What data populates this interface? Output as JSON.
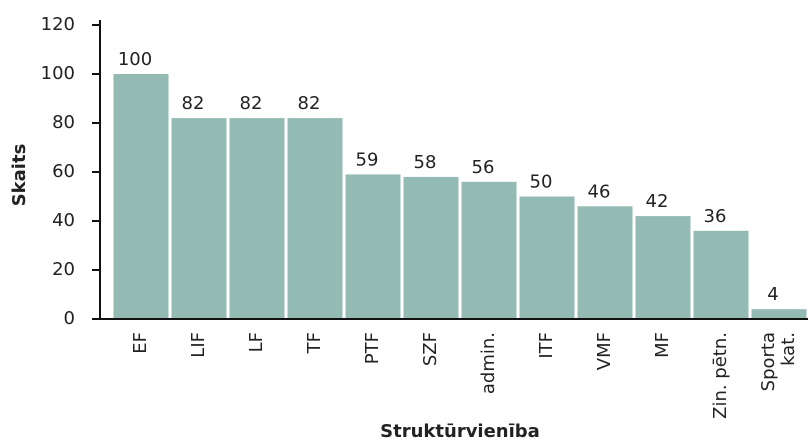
{
  "chart_data": {
    "type": "bar",
    "x_label": "Struktūrvienība",
    "y_label": "Skaits",
    "categories": [
      "EF",
      "LIF",
      "LF",
      "TF",
      "PTF",
      "SZF",
      "admin.",
      "ITF",
      "VMF",
      "MF",
      "Zin. pētn.",
      "Sporta\nkat."
    ],
    "values": [
      100,
      82,
      82,
      82,
      59,
      58,
      56,
      50,
      46,
      42,
      36,
      4
    ],
    "color": "#93bab3",
    "ylim": [
      0,
      120
    ],
    "yticks": [
      0,
      20,
      40,
      60,
      80,
      100,
      120
    ],
    "grid": false
  }
}
